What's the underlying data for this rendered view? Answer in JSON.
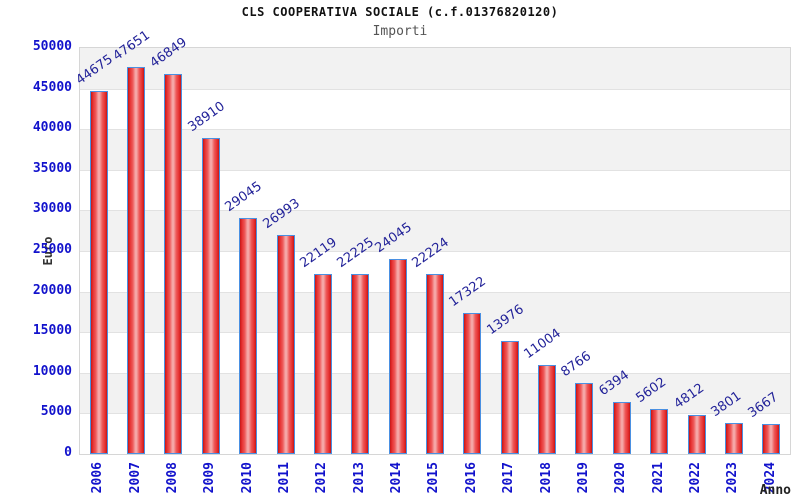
{
  "chart_data": {
    "type": "bar",
    "title": "CLS COOPERATIVA SOCIALE (c.f.01376820120)",
    "subtitle": "Importi",
    "xlabel": "Anno",
    "ylabel": "Euro",
    "categories": [
      "2006",
      "2007",
      "2008",
      "2009",
      "2010",
      "2011",
      "2012",
      "2013",
      "2014",
      "2015",
      "2016",
      "2017",
      "2018",
      "2019",
      "2020",
      "2021",
      "2022",
      "2023",
      "2024"
    ],
    "values": [
      44675,
      47651,
      46849,
      38910,
      29045,
      26993,
      22119,
      22225,
      24045,
      22224,
      17322,
      13976,
      11004,
      8766,
      6394,
      5602,
      4812,
      3801,
      3667
    ],
    "ylim": [
      0,
      50000
    ],
    "ytick_step": 5000,
    "grid": "horizontal gridlines with alternating shaded bands",
    "legend": "none",
    "value_labels": "above each bar, rotated"
  },
  "colors": {
    "bar_edge": "#c41616",
    "bar_highlight": "#f5a8a8",
    "bar_border": "#4a90e2",
    "tick_label": "#1212cc",
    "value_label": "#232399",
    "band_shaded": "#f2f2f2",
    "band_light": "#ffffff",
    "gridline": "#e2e2e2",
    "plot_border": "#d6d6d6",
    "title": "#111111",
    "subtitle": "#555555",
    "axis_name": "#333333"
  }
}
